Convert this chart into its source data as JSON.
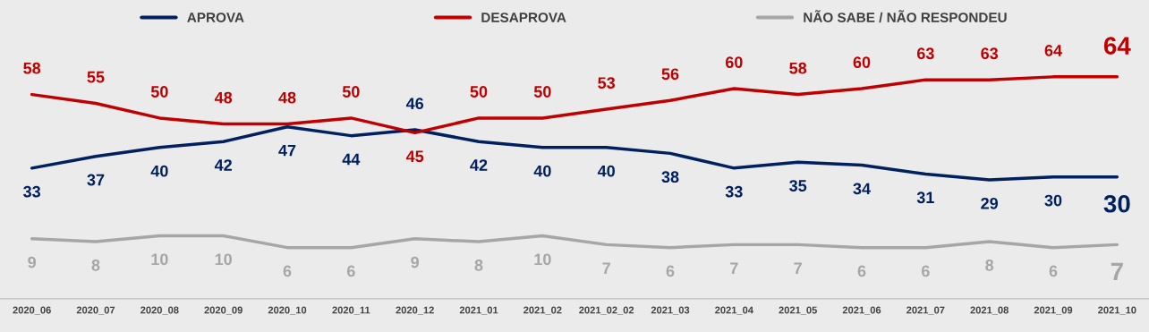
{
  "chart_data": {
    "type": "line",
    "categories": [
      "2020_06",
      "2020_07",
      "2020_08",
      "2020_09",
      "2020_10",
      "2020_11",
      "2020_12",
      "2021_01",
      "2021_02",
      "2021_02_02",
      "2021_03",
      "2021_04",
      "2021_05",
      "2021_06",
      "2021_07",
      "2021_08",
      "2021_09",
      "2021_10"
    ],
    "series": [
      {
        "name": "APROVA",
        "color": "#002060",
        "values": [
          33,
          37,
          40,
          42,
          47,
          44,
          46,
          42,
          40,
          40,
          38,
          33,
          35,
          34,
          31,
          29,
          30,
          30
        ]
      },
      {
        "name": "DESAPROVA",
        "color": "#c00000",
        "values": [
          58,
          55,
          50,
          48,
          48,
          50,
          45,
          50,
          50,
          53,
          56,
          60,
          58,
          60,
          63,
          63,
          64,
          64
        ]
      },
      {
        "name": "NÃO SABE / NÃO RESPONDEU",
        "color": "#a6a6a6",
        "values": [
          9,
          8,
          10,
          10,
          6,
          6,
          9,
          8,
          10,
          7,
          6,
          7,
          7,
          6,
          6,
          8,
          6,
          7
        ]
      }
    ],
    "data_labels": true,
    "legend": "top",
    "grid": false,
    "marker": "none",
    "line_style": "solid"
  }
}
